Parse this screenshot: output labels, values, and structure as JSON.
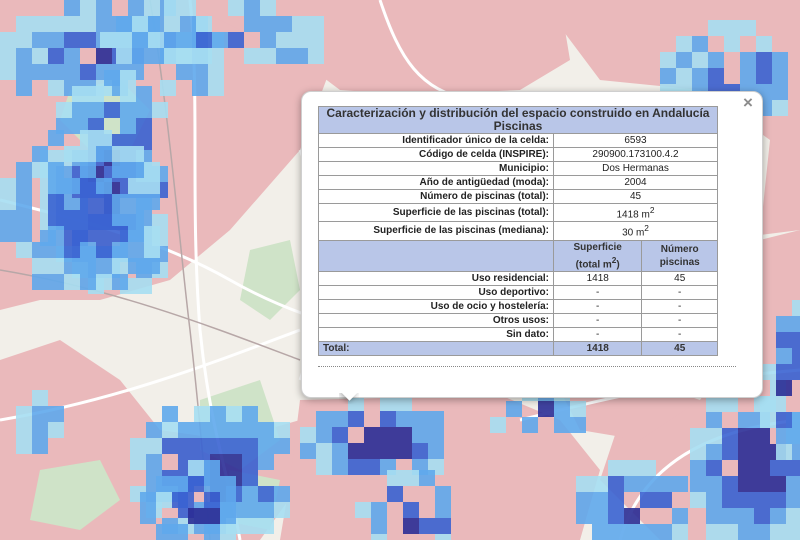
{
  "popup": {
    "close_icon": "×",
    "title_line1": "Caracterización y distribución del espacio construido en Andalucía",
    "title_line2": "Piscinas",
    "fields": [
      {
        "label": "Identificador único de la celda:",
        "value": "6593"
      },
      {
        "label": "Código de celda (INSPIRE):",
        "value": "290900.173100.4.2"
      },
      {
        "label": "Municipio:",
        "value": "Dos Hermanas"
      },
      {
        "label": "Año de antigüedad (moda):",
        "value": "2004"
      },
      {
        "label": "Número de piscinas (total):",
        "value": "45"
      },
      {
        "label": "Superficie de las piscinas (total):",
        "value": "1418 m",
        "sup": "2"
      },
      {
        "label": "Superficie de las piscinas (mediana):",
        "value": "30 m",
        "sup": "2"
      }
    ],
    "subheader": {
      "col1_line1": "Superficie",
      "col1_line2": "(total m",
      "col1_sup": "2",
      "col1_close": ")",
      "col2_line1": "Número",
      "col2_line2": "piscinas"
    },
    "uses": [
      {
        "label": "Uso residencial:",
        "surface": "1418",
        "count": "45"
      },
      {
        "label": "Uso deportivo:",
        "surface": "-",
        "count": "-"
      },
      {
        "label": "Uso de ocio y hostelería:",
        "surface": "-",
        "count": "-"
      },
      {
        "label": "Otros usos:",
        "surface": "-",
        "count": "-"
      },
      {
        "label": "Sin dato:",
        "surface": "-",
        "count": "-"
      }
    ],
    "total": {
      "label": "Total:",
      "surface": "1418",
      "count": "45"
    }
  },
  "colors": {
    "base": "#f2efe9",
    "urban": "#eab9bb",
    "green": "#cfe3c8",
    "road": "#ffffff",
    "rail": "#b7a7a7",
    "cell_light": "#a6def2",
    "cell_medium": "#5fa9ec",
    "cell_strong": "#3a63d1",
    "cell_dark": "#2b2e96",
    "header_bg": "#b9c6e8"
  }
}
